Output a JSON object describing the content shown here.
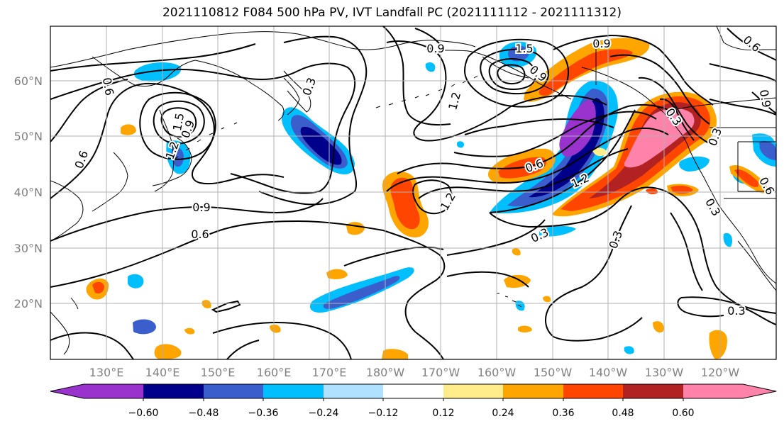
{
  "title": "2021110812 F084 500 hPa PV, IVT Landfall PC (2021111112 - 2021111312)",
  "axes": {
    "lat_labels": [
      "60°N",
      "50°N",
      "40°N",
      "30°N",
      "20°N"
    ],
    "lon_labels": [
      "130°E",
      "140°E",
      "150°E",
      "160°E",
      "170°E",
      "180°W",
      "170°W",
      "160°W",
      "150°W",
      "140°W",
      "130°W",
      "120°W"
    ]
  },
  "contour_labels": [
    "0.6",
    "0.6",
    "0.9",
    "1.2",
    "1.5",
    "0.9",
    "0.6",
    "0.3",
    "0.9",
    "1.2",
    "1.5",
    "0.9",
    "0.9",
    "0.6",
    "1.2",
    "0.3",
    "0.3",
    "0.3",
    "0.6",
    "0.6",
    "0.3",
    "0.3",
    "0.9",
    "0.3"
  ],
  "colorbar": {
    "ticks": [
      "−0.60",
      "−0.48",
      "−0.36",
      "−0.24",
      "−0.12",
      "0.12",
      "0.24",
      "0.36",
      "0.48",
      "0.60"
    ],
    "colors": [
      "#9a32cd",
      "#00008b",
      "#3a5fcd",
      "#00bfff",
      "#b0e2ff",
      "#ffffff",
      "#ffec8b",
      "#ffa500",
      "#ff4500",
      "#b22222",
      "#ff82ab",
      "#ff82ab"
    ]
  }
}
